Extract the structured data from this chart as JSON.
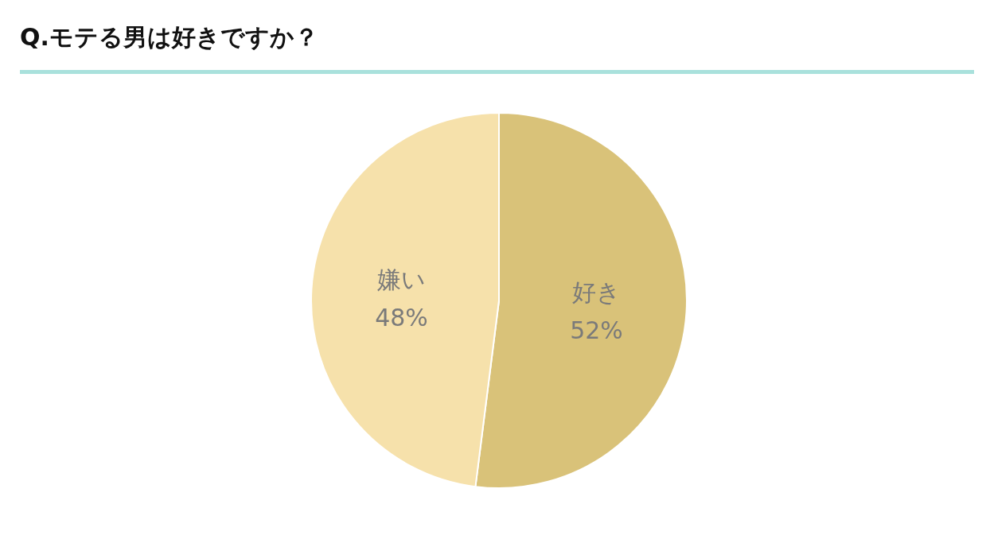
{
  "chart_data": {
    "type": "pie",
    "title": "Q.モテる男は好きですか？",
    "categories": [
      "好き",
      "嫌い"
    ],
    "values": [
      52,
      48
    ],
    "colors": [
      "#d9c279",
      "#f6e1ab"
    ],
    "value_labels": [
      "52%",
      "48%"
    ]
  }
}
